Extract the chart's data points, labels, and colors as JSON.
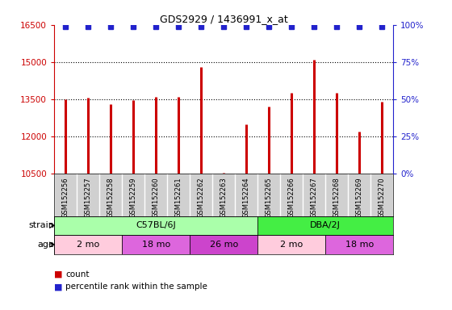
{
  "title": "GDS2929 / 1436991_x_at",
  "samples": [
    "GSM152256",
    "GSM152257",
    "GSM152258",
    "GSM152259",
    "GSM152260",
    "GSM152261",
    "GSM152262",
    "GSM152263",
    "GSM152264",
    "GSM152265",
    "GSM152266",
    "GSM152267",
    "GSM152268",
    "GSM152269",
    "GSM152270"
  ],
  "counts": [
    13500,
    13550,
    13300,
    13450,
    13600,
    13600,
    14800,
    10520,
    12500,
    13200,
    13750,
    15100,
    13750,
    12200,
    13400
  ],
  "ylim": [
    10500,
    16500
  ],
  "yticks_left": [
    10500,
    12000,
    13500,
    15000,
    16500
  ],
  "yticks_right": [
    0,
    25,
    50,
    75,
    100
  ],
  "right_ylim": [
    0,
    100
  ],
  "bar_color": "#cc0000",
  "dot_color": "#2222cc",
  "strain_blocks": [
    {
      "label": "C57BL/6J",
      "start": 0,
      "end": 8,
      "color": "#aaffaa"
    },
    {
      "label": "DBA/2J",
      "start": 9,
      "end": 14,
      "color": "#44ee44"
    }
  ],
  "age_blocks": [
    {
      "label": "2 mo",
      "start": 0,
      "end": 2,
      "color": "#ffccdd"
    },
    {
      "label": "18 mo",
      "start": 3,
      "end": 5,
      "color": "#dd66dd"
    },
    {
      "label": "26 mo",
      "start": 6,
      "end": 8,
      "color": "#cc44cc"
    },
    {
      "label": "2 mo",
      "start": 9,
      "end": 11,
      "color": "#ffccdd"
    },
    {
      "label": "18 mo",
      "start": 12,
      "end": 14,
      "color": "#dd66dd"
    }
  ],
  "left_label_color": "#cc0000",
  "right_label_color": "#2222cc",
  "sample_bg": "#d0d0d0",
  "bg_color": "#ffffff",
  "legend_count": "count",
  "legend_pct": "percentile rank within the sample"
}
